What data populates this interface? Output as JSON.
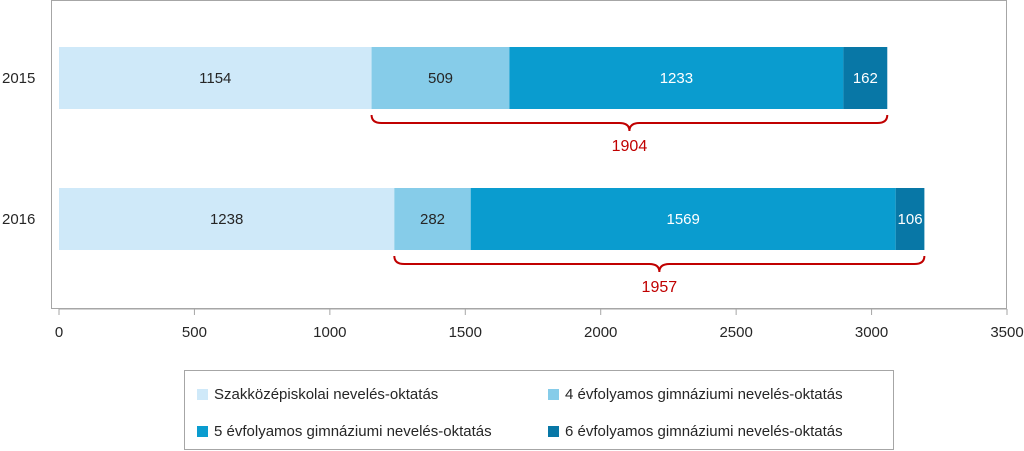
{
  "chart_data": {
    "type": "bar",
    "orientation": "horizontal",
    "stacked": true,
    "categories": [
      "2015",
      "2016"
    ],
    "series": [
      {
        "name": "Szakközépiskolai nevelés-oktatás",
        "values": [
          1154,
          1238
        ],
        "color": "#cfe9f9"
      },
      {
        "name": "4 évfolyamos gimnáziumi nevelés-oktatás",
        "values": [
          509,
          282
        ],
        "color": "#86cce9"
      },
      {
        "name": "5 évfolyamos gimnáziumi nevelés-oktatás",
        "values": [
          1233,
          1569
        ],
        "color": "#0a9ccf"
      },
      {
        "name": "6 évfolyamos gimnáziumi nevelés-oktatás",
        "values": [
          162,
          106
        ],
        "color": "#0877a6"
      }
    ],
    "bracket_annotations": [
      {
        "category": "2015",
        "from": 1154,
        "to": 3058,
        "label": "1904"
      },
      {
        "category": "2016",
        "from": 1238,
        "to": 3195,
        "label": "1957"
      }
    ],
    "annotation_color": "#c00000",
    "xlim": [
      0,
      3500
    ],
    "xticks": [
      "0",
      "500",
      "1000",
      "1500",
      "2000",
      "2500",
      "3000",
      "3500"
    ],
    "xticks_values": [
      0,
      500,
      1000,
      1500,
      2000,
      2500,
      3000,
      3500
    ],
    "grid": false,
    "legend": "bottom",
    "title": "",
    "xlabel": "",
    "ylabel": ""
  }
}
